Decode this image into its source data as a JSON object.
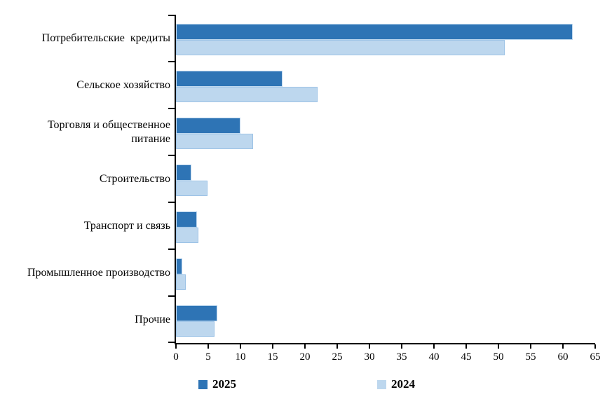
{
  "chart_data": {
    "type": "bar",
    "orientation": "horizontal",
    "title": "",
    "xlabel": "",
    "ylabel": "",
    "categories": [
      "Потребительские  кредиты",
      "Сельское хозяйство",
      "Торговля и общественное\nпитание",
      "Строительство",
      "Транспорт и связь",
      "Промышленное производство",
      "Прочие"
    ],
    "series": [
      {
        "name": "2025",
        "color": "#2E74B5",
        "border_color": "#BDD7EE",
        "values": [
          61.5,
          16.5,
          10,
          2.4,
          3.3,
          1,
          6.4
        ]
      },
      {
        "name": "2024",
        "color": "#BDD7EE",
        "border_color": "#9DC3E6",
        "values": [
          51,
          22,
          12,
          4.9,
          3.5,
          1.5,
          6
        ]
      }
    ],
    "xlim": [
      0,
      65
    ],
    "xticks": [
      0,
      5,
      10,
      15,
      20,
      25,
      30,
      35,
      40,
      45,
      50,
      55,
      60,
      65
    ],
    "grid": false,
    "legend_position": "bottom"
  },
  "colors": {
    "axis": "#000000",
    "text": "#000000"
  }
}
